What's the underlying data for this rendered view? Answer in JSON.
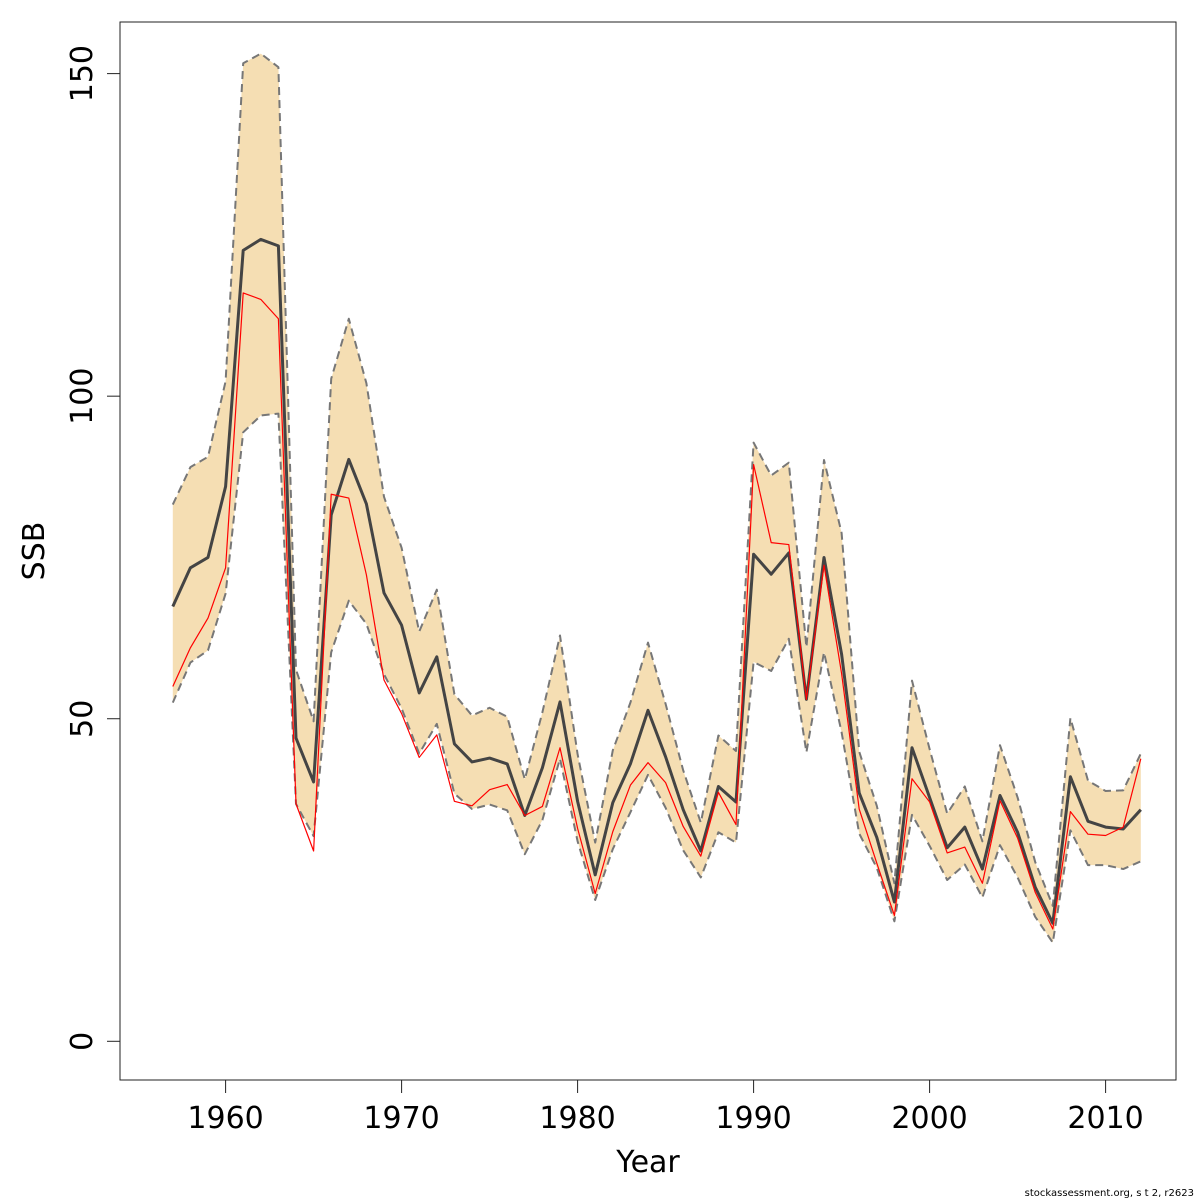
{
  "chart_data": {
    "type": "line",
    "xlabel": "Year",
    "ylabel": "SSB",
    "xlim": [
      1954,
      2014
    ],
    "ylim": [
      -6,
      158
    ],
    "x_ticks": [
      1960,
      1970,
      1980,
      1990,
      2000,
      2010
    ],
    "y_ticks": [
      0,
      50,
      100,
      150
    ],
    "grid": false,
    "x": [
      1957,
      1958,
      1959,
      1960,
      1961,
      1962,
      1963,
      1964,
      1965,
      1966,
      1967,
      1968,
      1969,
      1970,
      1971,
      1972,
      1973,
      1974,
      1975,
      1976,
      1977,
      1978,
      1979,
      1980,
      1981,
      1982,
      1983,
      1984,
      1985,
      1986,
      1987,
      1988,
      1989,
      1990,
      1991,
      1992,
      1993,
      1994,
      1995,
      1996,
      1997,
      1998,
      1999,
      2000,
      2001,
      2002,
      2003,
      2004,
      2005,
      2006,
      2007,
      2008,
      2009,
      2010,
      2011,
      2012
    ],
    "series": [
      {
        "role": "confidence-band-upper",
        "style": "dashed",
        "color": "#777777",
        "values": [
          83.2,
          89,
          90.6,
          102.3,
          151.6,
          153.1,
          151,
          57.6,
          49.6,
          102.7,
          112,
          102,
          84.4,
          76.5,
          63.5,
          70,
          53.8,
          50.5,
          51.7,
          50.3,
          40.6,
          51,
          62.9,
          44.5,
          30.8,
          45.1,
          52.5,
          61.8,
          52.3,
          42,
          33.9,
          47.4,
          45,
          92.8,
          87.7,
          89.7,
          61.1,
          90.1,
          78.8,
          44.9,
          36.5,
          24.5,
          55.9,
          45.3,
          35.3,
          39.5,
          31,
          45.9,
          37.8,
          27.8,
          21,
          50.1,
          40.4,
          38.8,
          38.9,
          44.6
        ]
      },
      {
        "role": "confidence-band-lower",
        "style": "dashed",
        "color": "#777777",
        "values": [
          52.5,
          58.7,
          60.6,
          69.4,
          94.4,
          97,
          97.3,
          36.8,
          31.8,
          60.3,
          68.3,
          64.7,
          56.9,
          51.6,
          44.6,
          49.2,
          38.4,
          36,
          36.7,
          35.8,
          29,
          34.3,
          43.8,
          31,
          21.9,
          29.8,
          35.5,
          41.3,
          36.2,
          29.6,
          25.4,
          32.4,
          30.8,
          58.8,
          57.4,
          62.4,
          44.8,
          60.3,
          47.9,
          32.2,
          26.9,
          18.6,
          35.1,
          30.3,
          25,
          27.4,
          22.3,
          30.4,
          25.4,
          19.3,
          15.3,
          32.7,
          27.3,
          27.3,
          26.7,
          27.9
        ]
      },
      {
        "role": "estimate",
        "style": "solid",
        "color": "#444444",
        "values": [
          67.4,
          73.4,
          75,
          86,
          122.6,
          124.3,
          123.3,
          47,
          40.2,
          81.6,
          90.2,
          83.3,
          69.5,
          64.5,
          54,
          59.6,
          46.1,
          43.3,
          43.9,
          43,
          35,
          42.4,
          52.6,
          37.2,
          25.8,
          37,
          43,
          51.3,
          44.1,
          35.9,
          29.5,
          39.5,
          37.1,
          75.5,
          72.4,
          75.7,
          53,
          75,
          60,
          38.5,
          31.6,
          21.6,
          45.5,
          37.8,
          30,
          33.2,
          26.7,
          38.1,
          32.4,
          23.9,
          18.3,
          41,
          34.1,
          33.2,
          32.9,
          35.9
        ]
      },
      {
        "role": "comparison",
        "style": "solid",
        "color": "#ff0000",
        "values": [
          55,
          61,
          65.6,
          73.4,
          116,
          115,
          112,
          36.8,
          29.5,
          84.8,
          84.2,
          72.3,
          56,
          50.8,
          44,
          47.5,
          37.2,
          36.5,
          39,
          39.8,
          35,
          36.4,
          45.5,
          33,
          22.9,
          32.5,
          39.7,
          43.2,
          40.1,
          33.3,
          28.7,
          38.6,
          33.6,
          89.4,
          77.3,
          77,
          53,
          73.8,
          57,
          36,
          27.6,
          19.5,
          40.7,
          37.1,
          29.2,
          30.1,
          24.5,
          37.3,
          31.5,
          23.1,
          17.4,
          35.6,
          32.1,
          31.9,
          33.2,
          43.8
        ]
      }
    ],
    "band_fill_color": "#f5deb3"
  },
  "footer_text": "stockassessment.org, s t 2, r2623"
}
